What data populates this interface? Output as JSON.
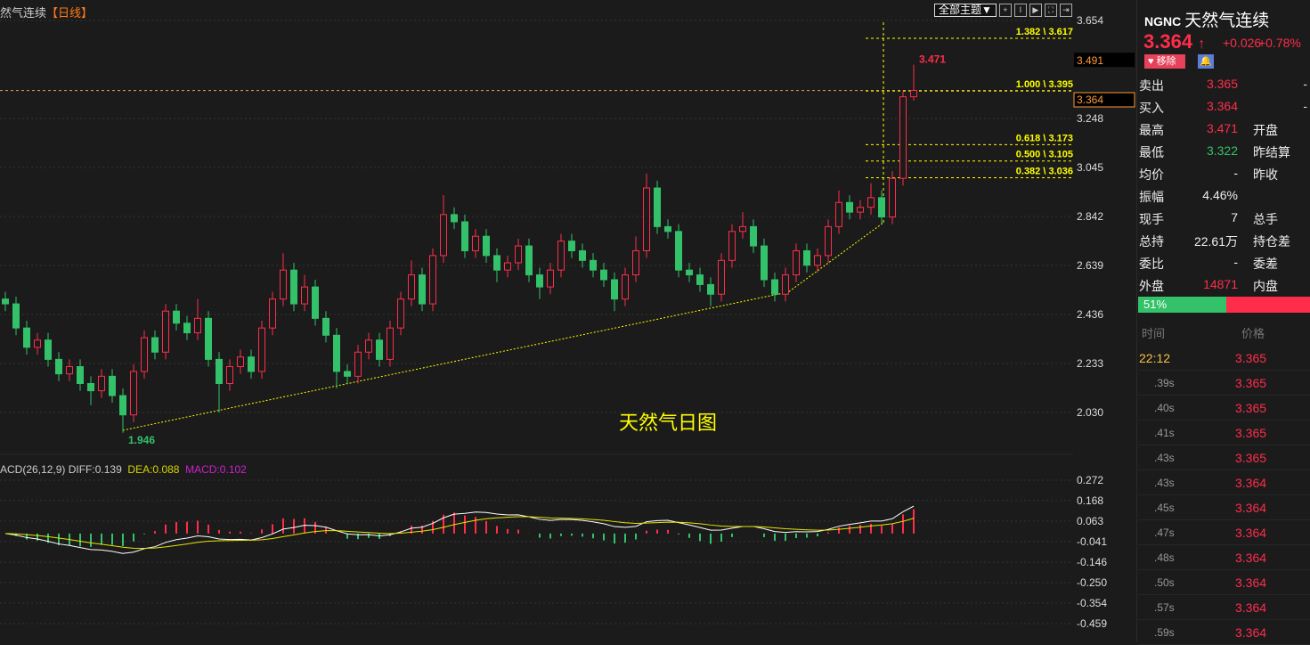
{
  "header": {
    "symbol_title": "然气连续",
    "timeframe": "【日线】"
  },
  "toolbar": {
    "theme_label": "全部主题▼",
    "icons": [
      "crosshair-icon",
      "interval-icon",
      "play-icon",
      "fullscreen-icon",
      "exit-icon"
    ]
  },
  "watermark": "天然气日图",
  "macd_header": {
    "name": "ACD(26,12,9)",
    "diff": "DIFF:0.139",
    "dea": "DEA:0.088",
    "macd": "MACD:0.102"
  },
  "colors": {
    "up": "#ff2d4a",
    "down": "#33c16a",
    "fib": "#ffff00",
    "diff": "#ffffff",
    "dea": "#e6e600",
    "bg": "#1b1b1b"
  },
  "chart_data": [
    {
      "type": "candlestick",
      "ylim": [
        2.03,
        3.654
      ],
      "yticks": [
        "3.654",
        "3.248",
        "3.045",
        "2.842",
        "2.639",
        "2.436",
        "2.233",
        "2.030"
      ],
      "price_boxes": [
        "3.491",
        "3.364"
      ],
      "low_label": "1.946",
      "high_label": "3.471",
      "current_price": 3.364,
      "fib_levels": [
        {
          "label": "1.382 \\ 3.617",
          "value": 3.617
        },
        {
          "label": "1.000 \\ 3.395",
          "value": 3.395
        },
        {
          "label": "0.618 \\ 3.173",
          "value": 3.173
        },
        {
          "label": "0.500 \\ 3.105",
          "value": 3.105
        },
        {
          "label": "0.382 \\ 3.036",
          "value": 3.036
        }
      ],
      "open": [
        2.5,
        2.48,
        2.38,
        2.3,
        2.33,
        2.25,
        2.19,
        2.22,
        2.15,
        2.12,
        2.18,
        2.1,
        2.02,
        2.2,
        2.34,
        2.28,
        2.45,
        2.4,
        2.36,
        2.42,
        2.25,
        2.15,
        2.22,
        2.26,
        2.2,
        2.38,
        2.5,
        2.62,
        2.48,
        2.55,
        2.42,
        2.35,
        2.2,
        2.18,
        2.28,
        2.33,
        2.25,
        2.38,
        2.5,
        2.6,
        2.48,
        2.68,
        2.85,
        2.82,
        2.7,
        2.76,
        2.68,
        2.62,
        2.65,
        2.72,
        2.6,
        2.55,
        2.62,
        2.74,
        2.7,
        2.66,
        2.62,
        2.58,
        2.5,
        2.6,
        2.7,
        2.96,
        2.8,
        2.78,
        2.62,
        2.6,
        2.56,
        2.52,
        2.66,
        2.78,
        2.8,
        2.72,
        2.58,
        2.52,
        2.6,
        2.7,
        2.64,
        2.68,
        2.8,
        2.9,
        2.86,
        2.88,
        2.92,
        2.84,
        3.0,
        3.338
      ],
      "high": [
        2.53,
        2.51,
        2.41,
        2.36,
        2.36,
        2.28,
        2.25,
        2.25,
        2.18,
        2.21,
        2.21,
        2.13,
        2.23,
        2.37,
        2.37,
        2.48,
        2.48,
        2.43,
        2.5,
        2.45,
        2.28,
        2.25,
        2.29,
        2.29,
        2.41,
        2.53,
        2.69,
        2.65,
        2.6,
        2.58,
        2.45,
        2.38,
        2.23,
        2.31,
        2.36,
        2.36,
        2.41,
        2.53,
        2.66,
        2.63,
        2.71,
        2.93,
        2.88,
        2.85,
        2.79,
        2.79,
        2.71,
        2.68,
        2.75,
        2.75,
        2.63,
        2.65,
        2.77,
        2.77,
        2.73,
        2.69,
        2.65,
        2.61,
        2.63,
        2.76,
        3.02,
        2.99,
        2.83,
        2.81,
        2.65,
        2.63,
        2.59,
        2.69,
        2.81,
        2.86,
        2.83,
        2.75,
        2.61,
        2.63,
        2.73,
        2.73,
        2.71,
        2.83,
        2.95,
        2.93,
        2.91,
        2.98,
        2.95,
        3.03,
        3.36,
        3.471
      ],
      "low": [
        2.45,
        2.35,
        2.27,
        2.27,
        2.22,
        2.16,
        2.16,
        2.12,
        2.06,
        2.09,
        2.07,
        1.946,
        1.99,
        2.17,
        2.25,
        2.25,
        2.37,
        2.33,
        2.33,
        2.22,
        2.03,
        2.12,
        2.19,
        2.17,
        2.17,
        2.35,
        2.47,
        2.45,
        2.45,
        2.39,
        2.32,
        2.13,
        2.15,
        2.15,
        2.25,
        2.22,
        2.22,
        2.35,
        2.47,
        2.45,
        2.45,
        2.65,
        2.79,
        2.67,
        2.67,
        2.65,
        2.57,
        2.59,
        2.62,
        2.57,
        2.5,
        2.52,
        2.59,
        2.67,
        2.63,
        2.59,
        2.55,
        2.45,
        2.47,
        2.57,
        2.67,
        2.77,
        2.75,
        2.59,
        2.57,
        2.53,
        2.47,
        2.49,
        2.63,
        2.75,
        2.69,
        2.55,
        2.49,
        2.49,
        2.57,
        2.61,
        2.61,
        2.65,
        2.77,
        2.83,
        2.83,
        2.85,
        2.81,
        2.81,
        2.97,
        3.322
      ],
      "close": [
        2.48,
        2.38,
        2.3,
        2.33,
        2.25,
        2.19,
        2.22,
        2.15,
        2.12,
        2.18,
        2.1,
        2.02,
        2.2,
        2.34,
        2.28,
        2.45,
        2.4,
        2.36,
        2.42,
        2.25,
        2.15,
        2.22,
        2.26,
        2.2,
        2.38,
        2.5,
        2.62,
        2.48,
        2.55,
        2.42,
        2.35,
        2.2,
        2.18,
        2.28,
        2.33,
        2.25,
        2.38,
        2.5,
        2.6,
        2.48,
        2.68,
        2.85,
        2.82,
        2.7,
        2.76,
        2.68,
        2.62,
        2.65,
        2.72,
        2.6,
        2.55,
        2.62,
        2.74,
        2.7,
        2.66,
        2.62,
        2.58,
        2.5,
        2.6,
        2.7,
        2.96,
        2.8,
        2.78,
        2.62,
        2.6,
        2.56,
        2.52,
        2.66,
        2.78,
        2.8,
        2.72,
        2.58,
        2.52,
        2.6,
        2.7,
        2.64,
        2.68,
        2.8,
        2.9,
        2.86,
        2.88,
        2.92,
        2.84,
        3.0,
        3.338,
        3.364
      ]
    },
    {
      "type": "macd",
      "ylim": [
        -0.459,
        0.272
      ],
      "yticks": [
        "0.272",
        "0.168",
        "0.063",
        "-0.041",
        "-0.146",
        "-0.250",
        "-0.354",
        "-0.459"
      ],
      "params": [
        26,
        12,
        9
      ],
      "diff": 0.139,
      "dea": 0.088,
      "macd": 0.102
    }
  ],
  "panel": {
    "code": "NGNC",
    "name": "天然气连续",
    "price": "3.364",
    "arrow": "↑",
    "change": "+0.026",
    "change_pct": "+0.78%",
    "fav_label": "移除",
    "bell_icon": "bell-icon",
    "quotes": [
      {
        "k": "卖出",
        "v": "3.365",
        "c": "up",
        "k2": "",
        "d": "-"
      },
      {
        "k": "买入",
        "v": "3.364",
        "c": "up",
        "k2": "",
        "d": "-"
      },
      {
        "k": "最高",
        "v": "3.471",
        "c": "up",
        "k2": "开盘",
        "d": ""
      },
      {
        "k": "最低",
        "v": "3.322",
        "c": "down",
        "k2": "昨结算",
        "d": ""
      },
      {
        "k": "均价",
        "v": "-",
        "c": "",
        "k2": "昨收",
        "d": ""
      },
      {
        "k": "振幅",
        "v": "4.46%",
        "c": "",
        "k2": "",
        "d": ""
      },
      {
        "k": "现手",
        "v": "7",
        "c": "",
        "k2": "总手",
        "d": ""
      },
      {
        "k": "总持",
        "v": "22.61万",
        "c": "",
        "k2": "持仓差",
        "d": ""
      },
      {
        "k": "委比",
        "v": "-",
        "c": "",
        "k2": "委差",
        "d": ""
      },
      {
        "k": "外盘",
        "v": "14871",
        "c": "up",
        "k2": "内盘",
        "d": ""
      }
    ],
    "buy_ratio": "51%",
    "buy_ratio_value": 51,
    "trades_header": {
      "time": "时间",
      "price": "价格"
    },
    "trades": [
      {
        "t": "22:12",
        "p": "3.365"
      },
      {
        "t": ".39s",
        "p": "3.365"
      },
      {
        "t": ".40s",
        "p": "3.365"
      },
      {
        "t": ".41s",
        "p": "3.365"
      },
      {
        "t": ".43s",
        "p": "3.365"
      },
      {
        "t": ".43s",
        "p": "3.364"
      },
      {
        "t": ".45s",
        "p": "3.364"
      },
      {
        "t": ".47s",
        "p": "3.364"
      },
      {
        "t": ".48s",
        "p": "3.364"
      },
      {
        "t": ".50s",
        "p": "3.364"
      },
      {
        "t": ".57s",
        "p": "3.364"
      },
      {
        "t": ".59s",
        "p": "3.364"
      }
    ]
  }
}
